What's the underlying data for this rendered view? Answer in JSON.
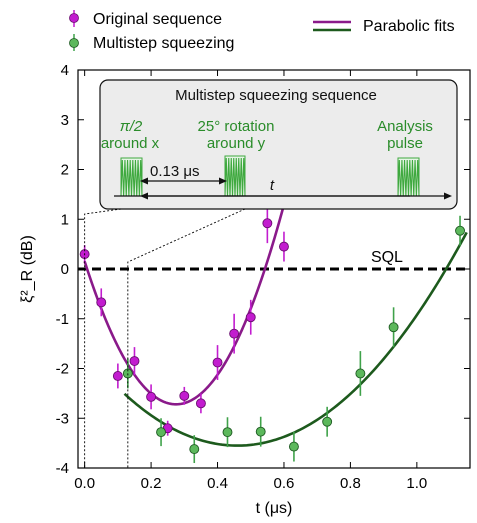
{
  "chart_data": {
    "type": "scatter",
    "xlabel": "t (μs)",
    "ylabel": "ξ²_R (dB)",
    "xlim": [
      -0.02,
      1.16
    ],
    "ylim": [
      -4,
      4
    ],
    "x_ticks": [
      "0.0",
      "0.2",
      "0.4",
      "0.6",
      "0.8",
      "1.0"
    ],
    "x_tick_values": [
      0.0,
      0.2,
      0.4,
      0.6,
      0.8,
      1.0
    ],
    "y_ticks": [
      "-4",
      "-3",
      "-2",
      "-1",
      "0",
      "1",
      "2",
      "3",
      "4"
    ],
    "y_tick_values": [
      -4,
      -3,
      -2,
      -1,
      0,
      1,
      2,
      3,
      4
    ],
    "reference_line": {
      "label": "SQL",
      "y": 0,
      "style": "dashed"
    },
    "legend": {
      "markers": [
        {
          "name": "Original sequence",
          "color": "#c21ccf"
        },
        {
          "name": "Multistep squeezing",
          "color": "#3fa24a"
        }
      ],
      "fit_label": "Parabolic fits"
    },
    "series": [
      {
        "name": "Original sequence",
        "color": "#c21ccf",
        "edge_color": "#6a0e70",
        "points": [
          {
            "x": 0.0,
            "y": 0.3,
            "err": 0.18
          },
          {
            "x": 0.05,
            "y": -0.67,
            "err": 0.28
          },
          {
            "x": 0.1,
            "y": -2.15,
            "err": 0.25
          },
          {
            "x": 0.15,
            "y": -1.85,
            "err": 0.28
          },
          {
            "x": 0.2,
            "y": -2.57,
            "err": 0.25
          },
          {
            "x": 0.25,
            "y": -3.2,
            "err": 0.15
          },
          {
            "x": 0.3,
            "y": -2.55,
            "err": 0.18
          },
          {
            "x": 0.35,
            "y": -2.7,
            "err": 0.2
          },
          {
            "x": 0.4,
            "y": -1.88,
            "err": 0.35
          },
          {
            "x": 0.45,
            "y": -1.3,
            "err": 0.4
          },
          {
            "x": 0.5,
            "y": -0.97,
            "err": 0.35
          },
          {
            "x": 0.55,
            "y": 0.92,
            "err": 0.4
          },
          {
            "x": 0.6,
            "y": 0.45,
            "err": 0.3
          }
        ]
      },
      {
        "name": "Multistep squeezing",
        "color": "#5cb85c",
        "edge_color": "#1e5a22",
        "points": [
          {
            "x": 0.13,
            "y": -2.1,
            "err": 0.3
          },
          {
            "x": 0.23,
            "y": -3.28,
            "err": 0.28
          },
          {
            "x": 0.33,
            "y": -3.62,
            "err": 0.28
          },
          {
            "x": 0.43,
            "y": -3.28,
            "err": 0.3
          },
          {
            "x": 0.53,
            "y": -3.27,
            "err": 0.3
          },
          {
            "x": 0.63,
            "y": -3.57,
            "err": 0.3
          },
          {
            "x": 0.73,
            "y": -3.07,
            "err": 0.3
          },
          {
            "x": 0.83,
            "y": -2.1,
            "err": 0.45
          },
          {
            "x": 0.93,
            "y": -1.17,
            "err": 0.4
          },
          {
            "x": 1.13,
            "y": 0.77,
            "err": 0.3
          }
        ]
      }
    ],
    "fits": [
      {
        "name": "Original sequence fit",
        "color": "#8a1a8a",
        "vertex_x": 0.275,
        "vertex_y": -2.72,
        "a": 38.0,
        "x_start": 0.0,
        "x_end": 0.625
      },
      {
        "name": "Multistep squeezing fit",
        "color": "#1d5a1d",
        "vertex_x": 0.46,
        "vertex_y": -3.55,
        "a": 9.0,
        "x_start": 0.12,
        "x_end": 1.15
      }
    ],
    "inset": {
      "title": "Multistep squeezing sequence",
      "pulse1_line1": "π/2",
      "pulse1_line2": "around x",
      "pulse2_line1": "25° rotation",
      "pulse2_line2": "around y",
      "pulse3_line1": "Analysis",
      "pulse3_line2": "pulse",
      "interval_label": "0.13 μs",
      "time_label": "t",
      "text_color": "#2a8c2a",
      "pulse_color": "#3fa93f"
    }
  }
}
